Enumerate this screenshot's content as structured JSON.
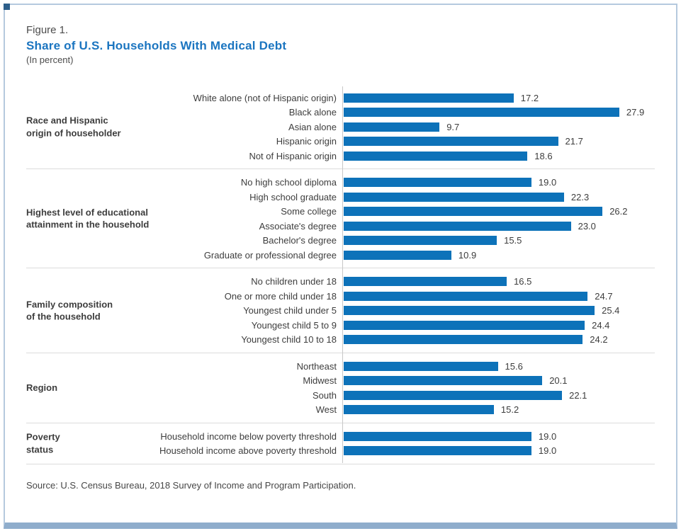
{
  "figure": {
    "label": "Figure 1.",
    "title": "Share of U.S. Households With Medical Debt",
    "subtitle": "(In percent)",
    "source": "Source: U.S. Census Bureau, 2018 Survey of Income and Program Participation."
  },
  "colors": {
    "bar": "#0d72b9",
    "title_text": "#1b75c0",
    "body_text": "#3d3d3d",
    "frame_border": "#b5c9de",
    "bottom_bar": "#8fadcc",
    "corner_accent": "#2d5f8a",
    "separator": "#dcdcdc",
    "axis_line": "#c8c8c8"
  },
  "chart_data": {
    "type": "bar",
    "orientation": "horizontal",
    "unit": "percent",
    "value_range": [
      0,
      30
    ],
    "value_decimals": 1,
    "grid": false,
    "legend": false,
    "groups": [
      {
        "label_lines": [
          "Race and Hispanic",
          "origin of householder"
        ],
        "categories": [
          "White alone (not of Hispanic origin)",
          "Black alone",
          "Asian alone",
          "Hispanic origin",
          "Not of Hispanic origin"
        ],
        "values": [
          17.2,
          27.9,
          9.7,
          21.7,
          18.6
        ]
      },
      {
        "label_lines": [
          "Highest level of educational",
          "attainment in the household"
        ],
        "categories": [
          "No high school diploma",
          "High school graduate",
          "Some college",
          "Associate's degree",
          "Bachelor's degree",
          "Graduate or professional degree"
        ],
        "values": [
          19.0,
          22.3,
          26.2,
          23.0,
          15.5,
          10.9
        ]
      },
      {
        "label_lines": [
          "Family composition",
          "of the household"
        ],
        "categories": [
          "No children under 18",
          "One or more child under 18",
          "Youngest child under 5",
          "Youngest child 5 to 9",
          "Youngest child 10 to 18"
        ],
        "values": [
          16.5,
          24.7,
          25.4,
          24.4,
          24.2
        ]
      },
      {
        "label_lines": [
          "Region"
        ],
        "categories": [
          "Northeast",
          "Midwest",
          "South",
          "West"
        ],
        "values": [
          15.6,
          20.1,
          22.1,
          15.2
        ]
      },
      {
        "label_lines": [
          "Poverty",
          "status"
        ],
        "categories": [
          "Household income below poverty threshold",
          "Household income above poverty threshold"
        ],
        "values": [
          19.0,
          19.0
        ]
      }
    ]
  }
}
